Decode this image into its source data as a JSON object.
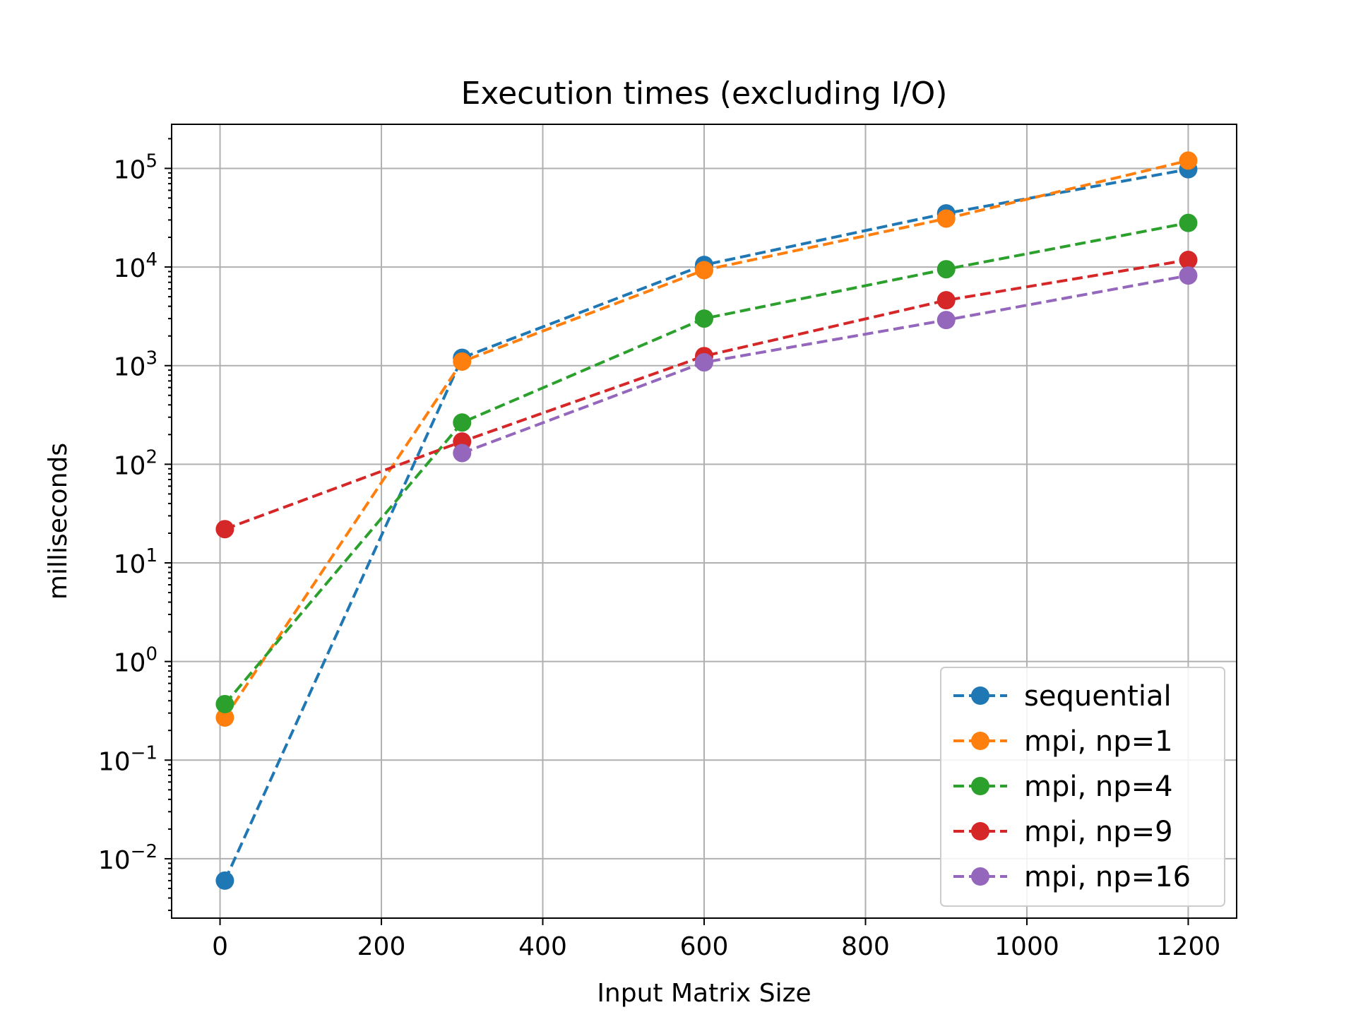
{
  "chart_data": {
    "type": "line",
    "title": "Execution times (excluding I/O)",
    "xlabel": "Input Matrix Size",
    "ylabel": "milliseconds",
    "yscale": "log",
    "xlim": [
      -60,
      1260
    ],
    "ylim": [
      0.0025,
      280000
    ],
    "x_ticks": [
      0,
      200,
      400,
      600,
      800,
      1000,
      1200
    ],
    "x_tick_labels": [
      "0",
      "200",
      "400",
      "600",
      "800",
      "1000",
      "1200"
    ],
    "y_ticks": [
      {
        "value": 0.01,
        "base": "10",
        "exp": "−2"
      },
      {
        "value": 0.1,
        "base": "10",
        "exp": "−1"
      },
      {
        "value": 1,
        "base": "10",
        "exp": "0"
      },
      {
        "value": 10,
        "base": "10",
        "exp": "1"
      },
      {
        "value": 100,
        "base": "10",
        "exp": "2"
      },
      {
        "value": 1000,
        "base": "10",
        "exp": "3"
      },
      {
        "value": 10000,
        "base": "10",
        "exp": "4"
      },
      {
        "value": 100000,
        "base": "10",
        "exp": "5"
      }
    ],
    "grid": true,
    "legend_position": "lower-right",
    "x": [
      6,
      300,
      600,
      900,
      1200
    ],
    "series": [
      {
        "name": "sequential",
        "color": "#1f77b4",
        "values": [
          0.006,
          1200,
          10500,
          35000,
          98000
        ]
      },
      {
        "name": "mpi, np=1",
        "color": "#ff7f0e",
        "values": [
          0.27,
          1100,
          9300,
          31000,
          120000
        ]
      },
      {
        "name": "mpi, np=4",
        "color": "#2ca02c",
        "values": [
          0.37,
          265,
          3000,
          9500,
          28000
        ]
      },
      {
        "name": "mpi, np=9",
        "color": "#d62728",
        "values": [
          22,
          170,
          1250,
          4600,
          11800
        ]
      },
      {
        "name": "mpi, np=16",
        "color": "#9467bd",
        "values": [
          null,
          130,
          1080,
          2900,
          8200
        ]
      }
    ]
  }
}
